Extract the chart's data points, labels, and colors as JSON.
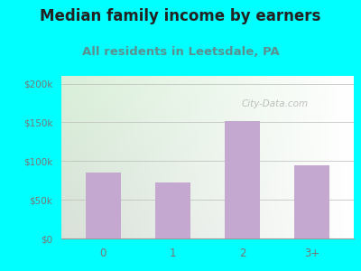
{
  "title": "Median family income by earners",
  "subtitle": "All residents in Leetsdale, PA",
  "categories": [
    "0",
    "1",
    "2",
    "3+"
  ],
  "values": [
    85000,
    72000,
    152000,
    95000
  ],
  "bar_color": "#c4a8d0",
  "title_fontsize": 12,
  "subtitle_fontsize": 9.5,
  "subtitle_color": "#5a9090",
  "title_color": "#222222",
  "background_outer": "#00FFFF",
  "ylim": [
    0,
    210000
  ],
  "yticks": [
    0,
    50000,
    100000,
    150000,
    200000
  ],
  "ytick_labels": [
    "$0",
    "$50k",
    "$100k",
    "$150k",
    "$200k"
  ],
  "watermark": "City-Data.com",
  "tick_color": "#777777"
}
